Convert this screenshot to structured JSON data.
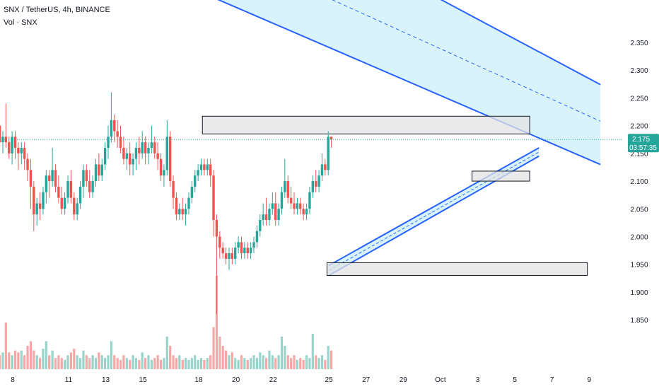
{
  "header": {
    "title": "SNX / TetherUS, 4h, BINANCE",
    "volume_label": "Vol · SNX"
  },
  "price_badge": {
    "price": "2.175",
    "countdown": "03:57:35",
    "color": "#26a69a"
  },
  "colors": {
    "up": "#26a69a",
    "down": "#ef5350",
    "vol_up": "#99d4cb",
    "vol_down": "#f5a8a6",
    "channel_line": "#2962ff",
    "channel_fill": "#d8f4fa",
    "zone_fill": "#e3e3e3",
    "zone_border": "#131722"
  },
  "chart_data": {
    "type": "candlestick",
    "yticks": [
      "2.350",
      "2.300",
      "2.250",
      "2.200",
      "2.150",
      "2.100",
      "2.050",
      "2.000",
      "1.950",
      "1.900",
      "1.850"
    ],
    "ylim": [
      1.812,
      2.378
    ],
    "xticks": [
      "8",
      "11",
      "13",
      "15",
      "18",
      "20",
      "22",
      "25",
      "27",
      "29",
      "Oct",
      "3",
      "5",
      "7",
      "9"
    ],
    "xtick_days": [
      8,
      11,
      13,
      15,
      18,
      20,
      22,
      25,
      27,
      29,
      31,
      33,
      35,
      37,
      39
    ],
    "candles_per_day": 6,
    "last_price": 2.175,
    "candles": [
      [
        2.33,
        2.35,
        2.3,
        2.32
      ],
      [
        2.32,
        2.34,
        2.26,
        2.28
      ],
      [
        2.28,
        2.3,
        2.24,
        2.25
      ],
      [
        2.25,
        2.26,
        2.2,
        2.22
      ],
      [
        2.22,
        2.23,
        2.17,
        2.18
      ],
      [
        2.18,
        2.21,
        2.16,
        2.2
      ],
      [
        2.2,
        2.2,
        2.16,
        2.17
      ],
      [
        2.17,
        2.19,
        2.15,
        2.18
      ],
      [
        2.18,
        2.24,
        2.16,
        2.17
      ],
      [
        2.17,
        2.18,
        2.14,
        2.15
      ],
      [
        2.15,
        2.19,
        2.13,
        2.18
      ],
      [
        2.18,
        2.19,
        2.14,
        2.16
      ],
      [
        2.16,
        2.17,
        2.12,
        2.15
      ],
      [
        2.15,
        2.17,
        2.13,
        2.16
      ],
      [
        2.16,
        2.17,
        2.12,
        2.14
      ],
      [
        2.14,
        2.15,
        2.1,
        2.12
      ],
      [
        2.12,
        2.14,
        2.05,
        2.09
      ],
      [
        2.09,
        2.1,
        2.01,
        2.04
      ],
      [
        2.04,
        2.07,
        2.02,
        2.06
      ],
      [
        2.06,
        2.08,
        2.03,
        2.05
      ],
      [
        2.05,
        2.09,
        2.04,
        2.08
      ],
      [
        2.08,
        2.12,
        2.06,
        2.11
      ],
      [
        2.11,
        2.12,
        2.07,
        2.1
      ],
      [
        2.1,
        2.16,
        2.09,
        2.12
      ],
      [
        2.12,
        2.13,
        2.08,
        2.09
      ],
      [
        2.09,
        2.11,
        2.06,
        2.07
      ],
      [
        2.07,
        2.09,
        2.04,
        2.05
      ],
      [
        2.05,
        2.08,
        2.04,
        2.07
      ],
      [
        2.07,
        2.11,
        2.06,
        2.1
      ],
      [
        2.1,
        2.12,
        2.06,
        2.07
      ],
      [
        2.07,
        2.08,
        2.03,
        2.04
      ],
      [
        2.04,
        2.07,
        2.03,
        2.06
      ],
      [
        2.06,
        2.1,
        2.05,
        2.09
      ],
      [
        2.09,
        2.13,
        2.07,
        2.12
      ],
      [
        2.12,
        2.13,
        2.09,
        2.1
      ],
      [
        2.1,
        2.12,
        2.07,
        2.08
      ],
      [
        2.08,
        2.11,
        2.07,
        2.1
      ],
      [
        2.1,
        2.14,
        2.09,
        2.13
      ],
      [
        2.13,
        2.15,
        2.1,
        2.11
      ],
      [
        2.11,
        2.14,
        2.1,
        2.13
      ],
      [
        2.13,
        2.17,
        2.12,
        2.16
      ],
      [
        2.16,
        2.2,
        2.14,
        2.18
      ],
      [
        2.18,
        2.26,
        2.17,
        2.21
      ],
      [
        2.21,
        2.22,
        2.17,
        2.19
      ],
      [
        2.19,
        2.21,
        2.16,
        2.18
      ],
      [
        2.18,
        2.2,
        2.15,
        2.16
      ],
      [
        2.16,
        2.18,
        2.13,
        2.14
      ],
      [
        2.14,
        2.16,
        2.12,
        2.15
      ],
      [
        2.15,
        2.17,
        2.11,
        2.13
      ],
      [
        2.13,
        2.15,
        2.11,
        2.14
      ],
      [
        2.14,
        2.17,
        2.12,
        2.16
      ],
      [
        2.16,
        2.18,
        2.13,
        2.15
      ],
      [
        2.15,
        2.19,
        2.14,
        2.17
      ],
      [
        2.17,
        2.18,
        2.13,
        2.15
      ],
      [
        2.15,
        2.17,
        2.13,
        2.16
      ],
      [
        2.16,
        2.2,
        2.15,
        2.17
      ],
      [
        2.17,
        2.18,
        2.14,
        2.15
      ],
      [
        2.15,
        2.17,
        2.12,
        2.14
      ],
      [
        2.14,
        2.15,
        2.1,
        2.11
      ],
      [
        2.11,
        2.13,
        2.09,
        2.12
      ],
      [
        2.12,
        2.21,
        2.11,
        2.18
      ],
      [
        2.18,
        2.19,
        2.09,
        2.1
      ],
      [
        2.1,
        2.11,
        2.05,
        2.07
      ],
      [
        2.07,
        2.08,
        2.03,
        2.04
      ],
      [
        2.04,
        2.06,
        2.03,
        2.05
      ],
      [
        2.05,
        2.07,
        2.03,
        2.04
      ],
      [
        2.04,
        2.06,
        2.02,
        2.05
      ],
      [
        2.05,
        2.08,
        2.04,
        2.07
      ],
      [
        2.07,
        2.1,
        2.06,
        2.09
      ],
      [
        2.09,
        2.12,
        2.08,
        2.11
      ],
      [
        2.11,
        2.13,
        2.1,
        2.12
      ],
      [
        2.12,
        2.14,
        2.11,
        2.13
      ],
      [
        2.13,
        2.14,
        2.11,
        2.12
      ],
      [
        2.12,
        2.14,
        2.11,
        2.13
      ],
      [
        2.13,
        2.14,
        2.09,
        2.11
      ],
      [
        2.11,
        2.12,
        2.0,
        2.03
      ],
      [
        2.03,
        2.04,
        1.86,
        2.0
      ],
      [
        2.0,
        2.01,
        1.96,
        1.98
      ],
      [
        1.98,
        1.99,
        1.96,
        1.97
      ],
      [
        1.97,
        1.98,
        1.95,
        1.96
      ],
      [
        1.96,
        1.98,
        1.94,
        1.97
      ],
      [
        1.97,
        1.98,
        1.95,
        1.96
      ],
      [
        1.96,
        1.99,
        1.95,
        1.98
      ],
      [
        1.98,
        2.0,
        1.97,
        1.99
      ],
      [
        1.99,
        2.0,
        1.96,
        1.97
      ],
      [
        1.97,
        1.99,
        1.96,
        1.98
      ],
      [
        1.98,
        1.99,
        1.96,
        1.97
      ],
      [
        1.97,
        1.99,
        1.96,
        1.98
      ],
      [
        1.98,
        2.0,
        1.97,
        1.99
      ],
      [
        1.99,
        2.02,
        1.98,
        2.01
      ],
      [
        2.01,
        2.04,
        2.0,
        2.03
      ],
      [
        2.03,
        2.06,
        2.02,
        2.04
      ],
      [
        2.04,
        2.07,
        2.02,
        2.03
      ],
      [
        2.03,
        2.06,
        2.02,
        2.05
      ],
      [
        2.05,
        2.08,
        2.04,
        2.06
      ],
      [
        2.06,
        2.08,
        2.02,
        2.03
      ],
      [
        2.03,
        2.06,
        2.02,
        2.05
      ],
      [
        2.05,
        2.09,
        2.04,
        2.08
      ],
      [
        2.08,
        2.14,
        2.07,
        2.1
      ],
      [
        2.1,
        2.11,
        2.06,
        2.07
      ],
      [
        2.07,
        2.09,
        2.05,
        2.06
      ],
      [
        2.06,
        2.08,
        2.04,
        2.05
      ],
      [
        2.05,
        2.07,
        2.04,
        2.06
      ],
      [
        2.06,
        2.07,
        2.04,
        2.05
      ],
      [
        2.05,
        2.06,
        2.03,
        2.04
      ],
      [
        2.04,
        2.06,
        2.03,
        2.05
      ],
      [
        2.05,
        2.09,
        2.04,
        2.08
      ],
      [
        2.08,
        2.11,
        2.07,
        2.1
      ],
      [
        2.1,
        2.12,
        2.08,
        2.09
      ],
      [
        2.09,
        2.12,
        2.08,
        2.11
      ],
      [
        2.11,
        2.15,
        2.1,
        2.13
      ],
      [
        2.13,
        2.14,
        2.11,
        2.12
      ],
      [
        2.12,
        2.19,
        2.11,
        2.18
      ],
      [
        2.18,
        2.18,
        2.16,
        2.175
      ]
    ],
    "volume": [
      0.35,
      0.3,
      0.28,
      0.2,
      0.25,
      0.2,
      0.15,
      0.18,
      0.5,
      0.18,
      0.15,
      0.2,
      0.18,
      0.2,
      0.15,
      0.25,
      0.3,
      0.2,
      0.15,
      0.12,
      0.22,
      0.3,
      0.15,
      0.2,
      0.12,
      0.15,
      0.12,
      0.1,
      0.15,
      0.18,
      0.22,
      0.15,
      0.12,
      0.2,
      0.15,
      0.12,
      0.15,
      0.12,
      0.18,
      0.15,
      0.12,
      0.15,
      0.3,
      0.15,
      0.12,
      0.1,
      0.15,
      0.12,
      0.1,
      0.15,
      0.12,
      0.1,
      0.18,
      0.12,
      0.15,
      0.1,
      0.12,
      0.15,
      0.1,
      0.12,
      0.35,
      0.25,
      0.15,
      0.12,
      0.15,
      0.1,
      0.12,
      0.1,
      0.12,
      0.15,
      0.1,
      0.12,
      0.1,
      0.12,
      0.15,
      0.45,
      1.0,
      0.35,
      0.25,
      0.2,
      0.15,
      0.18,
      0.12,
      0.1,
      0.15,
      0.12,
      0.1,
      0.12,
      0.15,
      0.12,
      0.18,
      0.15,
      0.12,
      0.2,
      0.15,
      0.12,
      0.15,
      0.35,
      0.25,
      0.15,
      0.12,
      0.15,
      0.1,
      0.12,
      0.1,
      0.15,
      0.12,
      0.38,
      0.15,
      0.12,
      0.15,
      0.1,
      0.25,
      0.2
    ],
    "drawings": {
      "channel_top": [
        [
          18.0,
          2.66
        ],
        [
          39.6,
          2.274
        ]
      ],
      "channel_mid": [
        [
          23.0,
          2.46
        ],
        [
          39.6,
          2.208
        ]
      ],
      "channel_bottom": [
        [
          14.7,
          2.49
        ],
        [
          39.6,
          2.13
        ]
      ],
      "rising_upper": [
        [
          25.0,
          1.948
        ],
        [
          36.3,
          2.16
        ]
      ],
      "rising_lower": [
        [
          25.0,
          1.93
        ],
        [
          36.3,
          2.145
        ]
      ],
      "zones": [
        {
          "from": [
            18.2,
            2.217
          ],
          "to": [
            35.8,
            2.185
          ]
        },
        {
          "from": [
            32.7,
            2.118
          ],
          "to": [
            35.8,
            2.1
          ]
        },
        {
          "from": [
            24.9,
            1.953
          ],
          "to": [
            38.9,
            1.93
          ]
        }
      ]
    }
  }
}
